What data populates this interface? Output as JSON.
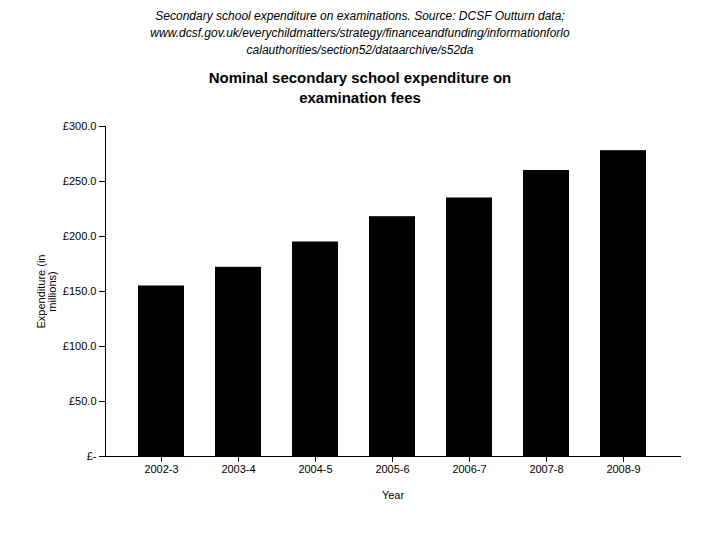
{
  "chart_data": {
    "type": "bar",
    "subtitle": "Secondary school expenditure on examinations. Source: DCSF Outturn data;\nwww.dcsf.gov.uk/everychildmatters/strategy/financeandfunding/informationforlo\ncalauthorities/section52/dataarchive/s52da",
    "title": "Nominal secondary school expenditure on\nexamination fees",
    "xlabel": "Year",
    "ylabel": "Expenditure (in\nmillions)",
    "categories": [
      "2002-3",
      "2003-4",
      "2004-5",
      "2005-6",
      "2006-7",
      "2007-8",
      "2008-9"
    ],
    "values": [
      155,
      172,
      195,
      218,
      235,
      260,
      278
    ],
    "ylim": [
      0,
      300
    ],
    "yticks": [
      {
        "value": 0,
        "label": "£-"
      },
      {
        "value": 50,
        "label": "£50.0"
      },
      {
        "value": 100,
        "label": "£100.0"
      },
      {
        "value": 150,
        "label": "£150.0"
      },
      {
        "value": 200,
        "label": "£200.0"
      },
      {
        "value": 250,
        "label": "£250.0"
      },
      {
        "value": 300,
        "label": "£300.0"
      }
    ],
    "grid": false
  }
}
